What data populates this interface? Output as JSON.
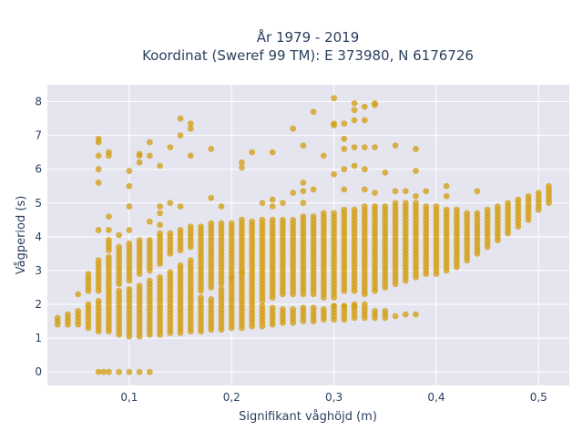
{
  "chart_data": {
    "type": "scatter",
    "title_line1": "År 1979 - 2019",
    "title_line2": "Koordinat (Sweref 99 TM): E 373980, N 6176726",
    "xlabel": "Signifikant våghöjd (m)",
    "ylabel": "Vågperiod (s)",
    "xlim": [
      0.02,
      0.53
    ],
    "ylim": [
      -0.4,
      8.5
    ],
    "x_ticks": [
      0.1,
      0.2,
      0.3,
      0.4,
      0.5
    ],
    "x_tick_labels": [
      "0,1",
      "0,2",
      "0,3",
      "0,4",
      "0,5"
    ],
    "y_ticks": [
      0,
      1,
      2,
      3,
      4,
      5,
      6,
      7,
      8
    ],
    "y_tick_labels": [
      "0",
      "1",
      "2",
      "3",
      "4",
      "5",
      "6",
      "7",
      "8"
    ],
    "grid": true,
    "legend": "none",
    "marker_color": "#d4a017",
    "background_color": "#e5e5f0",
    "columns": [
      {
        "x": 0.03,
        "ranges": [
          [
            1.4,
            1.6
          ]
        ]
      },
      {
        "x": 0.04,
        "ranges": [
          [
            1.4,
            1.7
          ]
        ]
      },
      {
        "x": 0.05,
        "ranges": [
          [
            1.4,
            1.8
          ]
        ]
      },
      {
        "x": 0.06,
        "ranges": [
          [
            1.3,
            1.9
          ],
          [
            2.4,
            2.9
          ]
        ]
      },
      {
        "x": 0.07,
        "ranges": [
          [
            1.2,
            2.1
          ],
          [
            2.4,
            3.3
          ]
        ]
      },
      {
        "x": 0.08,
        "ranges": [
          [
            1.2,
            2.1
          ],
          [
            2.2,
            3.4
          ],
          [
            3.6,
            3.9
          ]
        ]
      },
      {
        "x": 0.09,
        "ranges": [
          [
            1.1,
            2.4
          ],
          [
            2.6,
            3.7
          ]
        ]
      },
      {
        "x": 0.1,
        "ranges": [
          [
            1.05,
            2.5
          ],
          [
            2.7,
            3.8
          ]
        ]
      },
      {
        "x": 0.11,
        "ranges": [
          [
            1.05,
            2.6
          ],
          [
            2.9,
            3.9
          ]
        ]
      },
      {
        "x": 0.12,
        "ranges": [
          [
            1.1,
            2.7
          ],
          [
            3.0,
            3.9
          ]
        ]
      },
      {
        "x": 0.13,
        "ranges": [
          [
            1.1,
            2.8
          ],
          [
            3.2,
            4.1
          ]
        ]
      },
      {
        "x": 0.14,
        "ranges": [
          [
            1.15,
            3.0
          ],
          [
            3.5,
            4.1
          ]
        ]
      },
      {
        "x": 0.15,
        "ranges": [
          [
            1.15,
            3.2
          ],
          [
            3.6,
            4.2
          ]
        ]
      },
      {
        "x": 0.16,
        "ranges": [
          [
            1.2,
            3.3
          ],
          [
            3.7,
            4.3
          ]
        ]
      },
      {
        "x": 0.17,
        "ranges": [
          [
            1.2,
            2.2
          ],
          [
            2.4,
            4.3
          ]
        ]
      },
      {
        "x": 0.18,
        "ranges": [
          [
            1.25,
            2.2
          ],
          [
            2.5,
            4.4
          ]
        ]
      },
      {
        "x": 0.19,
        "ranges": [
          [
            1.25,
            2.5
          ],
          [
            2.6,
            4.4
          ]
        ]
      },
      {
        "x": 0.2,
        "ranges": [
          [
            1.3,
            4.4
          ]
        ]
      },
      {
        "x": 0.21,
        "ranges": [
          [
            1.3,
            4.5
          ]
        ]
      },
      {
        "x": 0.22,
        "ranges": [
          [
            1.35,
            4.5
          ]
        ]
      },
      {
        "x": 0.23,
        "ranges": [
          [
            1.35,
            2.0
          ],
          [
            2.1,
            4.5
          ]
        ]
      },
      {
        "x": 0.24,
        "ranges": [
          [
            1.4,
            1.9
          ],
          [
            2.2,
            4.5
          ]
        ]
      },
      {
        "x": 0.25,
        "ranges": [
          [
            1.45,
            1.9
          ],
          [
            2.3,
            4.5
          ]
        ]
      },
      {
        "x": 0.26,
        "ranges": [
          [
            1.45,
            1.9
          ],
          [
            2.3,
            4.5
          ]
        ]
      },
      {
        "x": 0.27,
        "ranges": [
          [
            1.5,
            1.9
          ],
          [
            2.3,
            4.6
          ]
        ]
      },
      {
        "x": 0.28,
        "ranges": [
          [
            1.5,
            1.9
          ],
          [
            2.3,
            4.6
          ]
        ]
      },
      {
        "x": 0.29,
        "ranges": [
          [
            1.55,
            1.9
          ],
          [
            2.2,
            4.7
          ]
        ]
      },
      {
        "x": 0.3,
        "ranges": [
          [
            1.55,
            2.0
          ],
          [
            2.2,
            4.7
          ]
        ]
      },
      {
        "x": 0.31,
        "ranges": [
          [
            1.55,
            2.0
          ],
          [
            2.4,
            4.8
          ]
        ]
      },
      {
        "x": 0.32,
        "ranges": [
          [
            1.6,
            2.0
          ],
          [
            2.4,
            4.8
          ]
        ]
      },
      {
        "x": 0.33,
        "ranges": [
          [
            1.6,
            2.0
          ],
          [
            2.3,
            4.9
          ]
        ]
      },
      {
        "x": 0.34,
        "ranges": [
          [
            1.6,
            1.8
          ],
          [
            2.4,
            4.9
          ]
        ]
      },
      {
        "x": 0.35,
        "ranges": [
          [
            1.6,
            1.8
          ],
          [
            2.5,
            4.9
          ]
        ]
      },
      {
        "x": 0.36,
        "ranges": [
          [
            2.6,
            5.0
          ]
        ]
      },
      {
        "x": 0.37,
        "ranges": [
          [
            2.7,
            5.0
          ]
        ]
      },
      {
        "x": 0.38,
        "ranges": [
          [
            2.8,
            5.0
          ]
        ]
      },
      {
        "x": 0.39,
        "ranges": [
          [
            2.9,
            4.9
          ]
        ]
      },
      {
        "x": 0.4,
        "ranges": [
          [
            2.9,
            4.9
          ]
        ]
      },
      {
        "x": 0.41,
        "ranges": [
          [
            3.0,
            4.8
          ]
        ]
      },
      {
        "x": 0.42,
        "ranges": [
          [
            3.1,
            4.8
          ]
        ]
      },
      {
        "x": 0.43,
        "ranges": [
          [
            3.3,
            4.7
          ]
        ]
      },
      {
        "x": 0.44,
        "ranges": [
          [
            3.5,
            4.7
          ]
        ]
      },
      {
        "x": 0.45,
        "ranges": [
          [
            3.7,
            4.8
          ]
        ]
      },
      {
        "x": 0.46,
        "ranges": [
          [
            3.9,
            4.9
          ]
        ]
      },
      {
        "x": 0.47,
        "ranges": [
          [
            4.1,
            5.0
          ]
        ]
      },
      {
        "x": 0.48,
        "ranges": [
          [
            4.3,
            5.1
          ]
        ]
      },
      {
        "x": 0.49,
        "ranges": [
          [
            4.5,
            5.2
          ]
        ]
      },
      {
        "x": 0.5,
        "ranges": [
          [
            4.8,
            5.3
          ]
        ]
      },
      {
        "x": 0.51,
        "ranges": [
          [
            5.0,
            5.5
          ]
        ]
      }
    ],
    "points": [
      [
        0.07,
        0
      ],
      [
        0.075,
        0
      ],
      [
        0.08,
        0
      ],
      [
        0.09,
        0
      ],
      [
        0.1,
        0
      ],
      [
        0.11,
        0
      ],
      [
        0.12,
        0
      ],
      [
        0.07,
        6.9
      ],
      [
        0.07,
        6.8
      ],
      [
        0.07,
        6.4
      ],
      [
        0.07,
        6.0
      ],
      [
        0.07,
        5.6
      ],
      [
        0.07,
        4.2
      ],
      [
        0.08,
        6.5
      ],
      [
        0.08,
        6.4
      ],
      [
        0.08,
        4.6
      ],
      [
        0.08,
        4.2
      ],
      [
        0.1,
        5.95
      ],
      [
        0.1,
        5.5
      ],
      [
        0.1,
        4.9
      ],
      [
        0.1,
        4.2
      ],
      [
        0.11,
        6.45
      ],
      [
        0.11,
        6.4
      ],
      [
        0.11,
        6.2
      ],
      [
        0.12,
        6.8
      ],
      [
        0.12,
        6.4
      ],
      [
        0.13,
        6.1
      ],
      [
        0.13,
        4.9
      ],
      [
        0.13,
        4.7
      ],
      [
        0.14,
        6.65
      ],
      [
        0.14,
        5.0
      ],
      [
        0.15,
        7.5
      ],
      [
        0.15,
        7.0
      ],
      [
        0.15,
        4.9
      ],
      [
        0.16,
        7.35
      ],
      [
        0.16,
        7.2
      ],
      [
        0.16,
        6.4
      ],
      [
        0.18,
        6.6
      ],
      [
        0.18,
        5.15
      ],
      [
        0.19,
        4.9
      ],
      [
        0.21,
        6.2
      ],
      [
        0.21,
        6.05
      ],
      [
        0.22,
        6.5
      ],
      [
        0.23,
        5.0
      ],
      [
        0.24,
        6.5
      ],
      [
        0.24,
        4.9
      ],
      [
        0.24,
        5.1
      ],
      [
        0.25,
        5.0
      ],
      [
        0.26,
        7.2
      ],
      [
        0.26,
        5.3
      ],
      [
        0.27,
        6.7
      ],
      [
        0.27,
        5.6
      ],
      [
        0.27,
        5.35
      ],
      [
        0.27,
        5.0
      ],
      [
        0.28,
        7.7
      ],
      [
        0.28,
        5.4
      ],
      [
        0.29,
        6.4
      ],
      [
        0.3,
        8.1
      ],
      [
        0.3,
        7.35
      ],
      [
        0.3,
        7.3
      ],
      [
        0.3,
        5.85
      ],
      [
        0.31,
        7.35
      ],
      [
        0.31,
        6.9
      ],
      [
        0.31,
        6.6
      ],
      [
        0.31,
        6.0
      ],
      [
        0.31,
        5.4
      ],
      [
        0.32,
        7.95
      ],
      [
        0.32,
        7.75
      ],
      [
        0.32,
        7.45
      ],
      [
        0.32,
        6.65
      ],
      [
        0.32,
        6.1
      ],
      [
        0.33,
        7.85
      ],
      [
        0.33,
        7.45
      ],
      [
        0.33,
        6.65
      ],
      [
        0.33,
        6.0
      ],
      [
        0.33,
        5.4
      ],
      [
        0.34,
        7.95
      ],
      [
        0.34,
        7.9
      ],
      [
        0.34,
        6.65
      ],
      [
        0.34,
        5.3
      ],
      [
        0.35,
        5.9
      ],
      [
        0.36,
        6.7
      ],
      [
        0.36,
        5.35
      ],
      [
        0.37,
        5.35
      ],
      [
        0.38,
        6.6
      ],
      [
        0.38,
        5.95
      ],
      [
        0.38,
        5.2
      ],
      [
        0.39,
        5.35
      ],
      [
        0.41,
        5.5
      ],
      [
        0.41,
        5.2
      ],
      [
        0.44,
        5.35
      ],
      [
        0.2,
        2.8
      ],
      [
        0.21,
        2.95
      ],
      [
        0.3,
        1.95
      ],
      [
        0.31,
        1.95
      ],
      [
        0.32,
        1.95
      ],
      [
        0.36,
        1.65
      ],
      [
        0.37,
        1.7
      ],
      [
        0.38,
        1.7
      ],
      [
        0.05,
        2.3
      ],
      [
        0.06,
        2.0
      ],
      [
        0.09,
        4.05
      ],
      [
        0.12,
        4.45
      ],
      [
        0.13,
        4.35
      ]
    ]
  }
}
